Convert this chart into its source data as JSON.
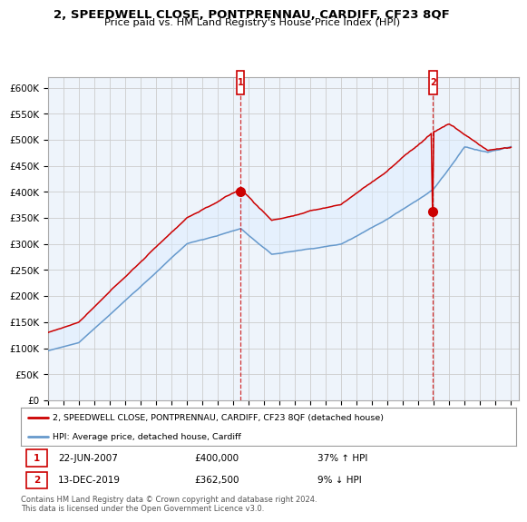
{
  "title": "2, SPEEDWELL CLOSE, PONTPRENNAU, CARDIFF, CF23 8QF",
  "subtitle": "Price paid vs. HM Land Registry's House Price Index (HPI)",
  "ylim": [
    0,
    620000
  ],
  "yticks": [
    0,
    50000,
    100000,
    150000,
    200000,
    250000,
    300000,
    350000,
    400000,
    450000,
    500000,
    550000,
    600000
  ],
  "ytick_labels": [
    "£0",
    "£50K",
    "£100K",
    "£150K",
    "£200K",
    "£250K",
    "£300K",
    "£350K",
    "£400K",
    "£450K",
    "£500K",
    "£550K",
    "£600K"
  ],
  "xlim_start": 1995.0,
  "xlim_end": 2025.5,
  "sale1_x": 2007.47,
  "sale1_y": 400000,
  "sale2_x": 2019.95,
  "sale2_y": 362500,
  "red_color": "#cc0000",
  "blue_color": "#6699cc",
  "fill_color": "#ddeeff",
  "legend_label_red": "2, SPEEDWELL CLOSE, PONTPRENNAU, CARDIFF, CF23 8QF (detached house)",
  "legend_label_blue": "HPI: Average price, detached house, Cardiff",
  "sale1_date": "22-JUN-2007",
  "sale1_price": "£400,000",
  "sale1_hpi": "37% ↑ HPI",
  "sale2_date": "13-DEC-2019",
  "sale2_price": "£362,500",
  "sale2_hpi": "9% ↓ HPI",
  "footer": "Contains HM Land Registry data © Crown copyright and database right 2024.\nThis data is licensed under the Open Government Licence v3.0.",
  "bg_color": "#ffffff",
  "grid_color": "#cccccc"
}
